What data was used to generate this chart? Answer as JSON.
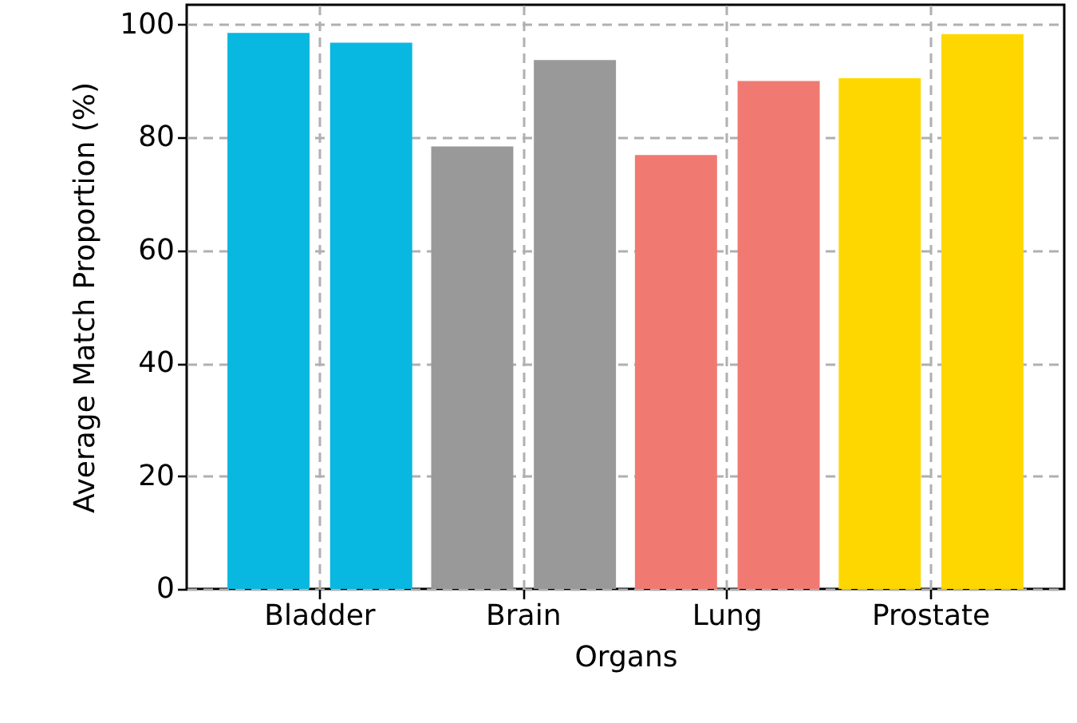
{
  "chart_data": {
    "type": "bar",
    "xlabel": "Organs",
    "ylabel": "Average Match Proportion (%)",
    "categories": [
      "Bladder",
      "Brain",
      "Lung",
      "Prostate"
    ],
    "series": [
      {
        "colors": [
          "#08b8e0",
          "#999999",
          "#f07a72",
          "#ffd700"
        ],
        "values": [
          98.5,
          78.4,
          76.9,
          90.5
        ]
      },
      {
        "colors": [
          "#08b8e0",
          "#999999",
          "#f07a72",
          "#ffd700"
        ],
        "values": [
          96.8,
          93.7,
          90.0,
          98.3
        ]
      }
    ],
    "ylim": [
      0,
      103.5
    ],
    "yticks": [
      0,
      20,
      40,
      60,
      80,
      100
    ],
    "grid": true
  }
}
